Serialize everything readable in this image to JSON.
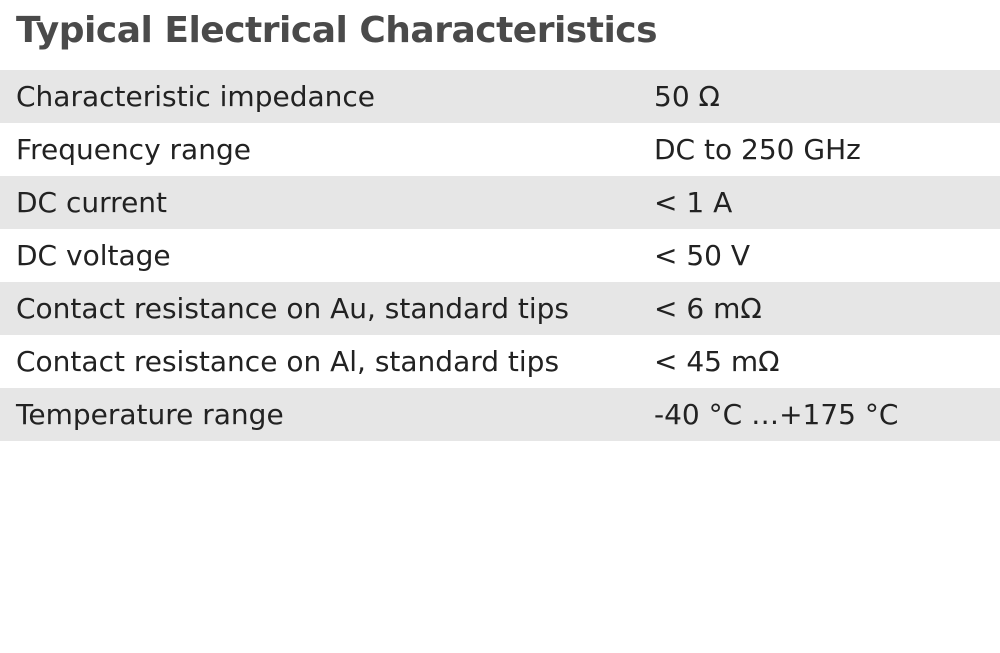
{
  "header": {
    "title": "Typical Electrical Characteristics"
  },
  "table": {
    "rows": [
      [
        "Characteristic impedance",
        "50 Ω"
      ],
      [
        "Frequency range",
        "DC to 250 GHz"
      ],
      [
        "DC current",
        "< 1 A"
      ],
      [
        "DC voltage",
        "< 50 V"
      ],
      [
        "Contact resistance on Au, standard tips",
        "< 6 mΩ"
      ],
      [
        "Contact resistance on Al, standard tips",
        "< 45 mΩ"
      ],
      [
        "Temperature range",
        "-40 °C …+175 °C"
      ]
    ]
  }
}
